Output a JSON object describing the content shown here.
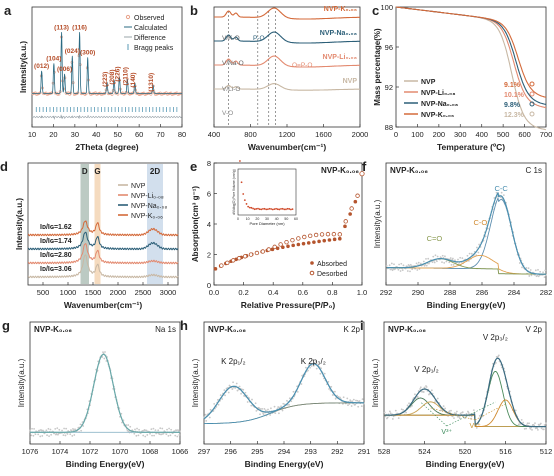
{
  "chart_data": [
    {
      "id": "a",
      "panel_label": "a",
      "type": "line",
      "xlabel": "2Theta (degree)",
      "ylabel": "Intensity(a.u.)",
      "xlim": [
        10,
        80
      ],
      "ylim": [
        0,
        100
      ],
      "xticks": [
        "10",
        "20",
        "30",
        "40",
        "50",
        "60",
        "70",
        "80"
      ],
      "legend": {
        "placement": "top-right",
        "entries": [
          "Observed",
          "Calculated",
          "Difference",
          "Bragg peaks"
        ]
      },
      "peaks": [
        {
          "x": 14.5,
          "y": 30,
          "label": "(012)"
        },
        {
          "x": 20.2,
          "y": 40,
          "label": "(104)"
        },
        {
          "x": 23.8,
          "y": 82,
          "label": "(113)"
        },
        {
          "x": 25.2,
          "y": 26,
          "label": "(006)"
        },
        {
          "x": 28.8,
          "y": 50,
          "label": "(024)"
        },
        {
          "x": 32.2,
          "y": 82,
          "label": "(116)"
        },
        {
          "x": 36.0,
          "y": 48,
          "label": "(300)"
        },
        {
          "x": 45.0,
          "y": 15,
          "label": "(223)"
        },
        {
          "x": 48.3,
          "y": 18,
          "label": "(208)"
        },
        {
          "x": 50.8,
          "y": 22,
          "label": "(226)"
        },
        {
          "x": 54.5,
          "y": 19,
          "label": "(2110)"
        },
        {
          "x": 58.0,
          "y": 14,
          "label": "(140)"
        },
        {
          "x": 66.5,
          "y": 11,
          "label": "(1310)"
        }
      ],
      "colors": {
        "observed": "#e8a28a",
        "calculated": "#2a6a82",
        "difference": "#9aa4aa",
        "bragg": "#5a9ab5"
      }
    },
    {
      "id": "b",
      "panel_label": "b",
      "type": "line",
      "xlabel": "Wavenumber(cm⁻¹)",
      "ylabel": "",
      "xlim": [
        400,
        2000
      ],
      "xticks": [
        "400",
        "800",
        "1200",
        "1600",
        "2000"
      ],
      "series": [
        {
          "name": "NVP-K₀.₀₆",
          "color": "#d46a3a",
          "offset": 4
        },
        {
          "name": "NVP-Na₀.₀₈",
          "color": "#2c5f78",
          "offset": 3
        },
        {
          "name": "NVP-Li₀.₀₈",
          "color": "#e38a70",
          "offset": 2
        },
        {
          "name": "NVP",
          "color": "#c8b8a4",
          "offset": 1
        }
      ],
      "annotations": [
        "V/K-O",
        "P-O",
        "V/Na-O",
        "O=P-O",
        "V/Li-O",
        "V-O"
      ],
      "dashed_x": [
        560,
        880,
        1000,
        1075
      ]
    },
    {
      "id": "c",
      "panel_label": "c",
      "type": "line",
      "xlabel": "Temperature (ºC)",
      "ylabel": "Mass percentage(%)",
      "xlim": [
        0,
        700
      ],
      "ylim": [
        88,
        100
      ],
      "xticks": [
        "0",
        "100",
        "200",
        "300",
        "400",
        "500",
        "600",
        "700"
      ],
      "yticks": [
        "88",
        "92",
        "96",
        "100"
      ],
      "series": [
        {
          "name": "NVP",
          "color": "#c8b8a4",
          "loss": "12.3%",
          "final": 87.7
        },
        {
          "name": "NVP-Li₀.₀₈",
          "color": "#e38a70",
          "loss": "10.1%",
          "final": 89.9
        },
        {
          "name": "NVP-Na₀.₀₈",
          "color": "#2c5f78",
          "loss": "9.8%",
          "final": 90.2
        },
        {
          "name": "NVP-K₀.₀₆",
          "color": "#d46a3a",
          "loss": "9.1%",
          "final": 90.9
        }
      ]
    },
    {
      "id": "d",
      "panel_label": "d",
      "type": "line",
      "xlabel": "Wavenumber(cm⁻¹)",
      "ylabel": "Intensity(a.u.)",
      "xlim": [
        200,
        3200
      ],
      "xticks": [
        "500",
        "1000",
        "1500",
        "2000",
        "2500",
        "3000"
      ],
      "bands": [
        {
          "name": "D",
          "from": 1250,
          "to": 1420
        },
        {
          "name": "G",
          "from": 1530,
          "to": 1650
        },
        {
          "name": "2D",
          "from": 2580,
          "to": 2900
        }
      ],
      "series": [
        {
          "name": "NVP",
          "color": "#c8b8a4",
          "ratio": "3.06",
          "offset": 0
        },
        {
          "name": "NVP-Li₀.₀₈",
          "color": "#e38a70",
          "ratio": "2.80",
          "offset": 1
        },
        {
          "name": "NVP-Na₀.₀₈",
          "color": "#2c5f78",
          "ratio": "1.74",
          "offset": 2
        },
        {
          "name": "NVP-K₀.₀₆",
          "color": "#d46a3a",
          "ratio": "1.62",
          "offset": 3
        }
      ],
      "ratio_label": "Iᴅ/Iɢ"
    },
    {
      "id": "e",
      "panel_label": "e",
      "type": "scatter",
      "title": "NVP-K₀.₀₆",
      "xlabel": "Relative Pressure(P/P₀)",
      "ylabel": "Absorption(cm³ g⁻¹)",
      "xlim": [
        0,
        1.0
      ],
      "ylim": [
        0,
        8
      ],
      "xticks": [
        "0.0",
        "0.2",
        "0.4",
        "0.6",
        "0.8",
        "1.0"
      ],
      "yticks": [
        "0",
        "2",
        "4",
        "6",
        "8"
      ],
      "legend": {
        "placement": "bottom-right",
        "entries": [
          "Absorbed",
          "Desorbed"
        ]
      },
      "inset": {
        "xlabel": "Pore Diameter (nm)",
        "ylabel": "dV/dlog(D) Pore Volume (cm³/g)",
        "xlim": [
          0,
          60
        ],
        "xticks": [
          "0",
          "10",
          "20",
          "30",
          "40",
          "50",
          "60"
        ]
      },
      "color": "#b5552e"
    },
    {
      "id": "f",
      "panel_label": "f",
      "type": "line",
      "title": "NVP-K₀.₀₆",
      "subtitle": "C 1s",
      "xlabel": "Binding Energy(eV)",
      "ylabel": "Intensity(a.u.)",
      "xlim": [
        292,
        282
      ],
      "xticks": [
        "292",
        "290",
        "288",
        "286",
        "284",
        "282"
      ],
      "peaks": [
        {
          "label": "C-C",
          "x": 284.8
        },
        {
          "label": "C-O",
          "x": 286.1
        },
        {
          "label": "C=O",
          "x": 288.6
        }
      ]
    },
    {
      "id": "g",
      "panel_label": "g",
      "type": "line",
      "title": "NVP-K₀.₀₆",
      "subtitle": "Na 1s",
      "xlabel": "Binding Energy(eV)",
      "ylabel": "Intensity(a.u.)",
      "xlim": [
        1076,
        1066
      ],
      "xticks": [
        "1076",
        "1074",
        "1072",
        "1070",
        "1068",
        "1066"
      ],
      "peaks": [
        {
          "label": "",
          "x": 1071.1
        }
      ]
    },
    {
      "id": "h",
      "panel_label": "h",
      "type": "line",
      "title": "NVP-K₀.₀₆",
      "subtitle": "K 2p",
      "xlabel": "Binding Energy(eV)",
      "ylabel": "Intensity(a.u.)",
      "xlim": [
        297,
        291
      ],
      "xticks": [
        "297",
        "296",
        "295",
        "294",
        "293",
        "292",
        "291"
      ],
      "peaks": [
        {
          "label": "K 2p₁/₂",
          "x": 295.9
        },
        {
          "label": "K 2p₃/₂",
          "x": 292.9
        }
      ]
    },
    {
      "id": "i",
      "panel_label": "i",
      "type": "line",
      "title": "NVP-K₀.₀₆",
      "subtitle": "V 2p",
      "xlabel": "Binding Energy(eV)",
      "ylabel": "Intensity(a.u.)",
      "xlim": [
        528,
        512
      ],
      "xticks": [
        "528",
        "524",
        "520",
        "516",
        "512"
      ],
      "peaks": [
        {
          "label": "V 2p₁/₂",
          "x": 523.8
        },
        {
          "label": "V 2p₃/₂",
          "x": 517.0
        }
      ],
      "species": [
        "V³⁺",
        "V⁴⁺"
      ]
    }
  ]
}
